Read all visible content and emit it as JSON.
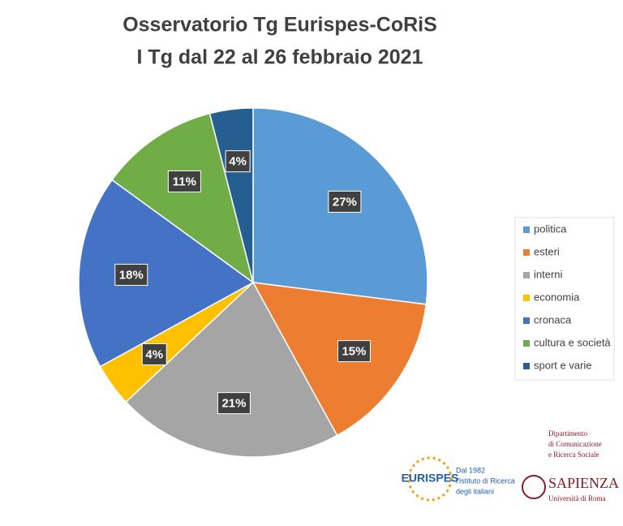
{
  "chart_data": {
    "type": "pie",
    "title": "Osservatorio Tg Eurispes-CoRiS",
    "subtitle": "I Tg dal 22 al 26 febbraio 2021",
    "categories": [
      "politica",
      "esteri",
      "interni",
      "economia",
      "cronaca",
      "cultura e società",
      "sport e varie"
    ],
    "values": [
      27,
      15,
      21,
      4,
      18,
      11,
      4
    ],
    "value_labels": [
      "27%",
      "15%",
      "21%",
      "4%",
      "18%",
      "11%",
      "4%"
    ],
    "colors": [
      "#5b9bd5",
      "#ed7d31",
      "#a5a5a5",
      "#ffc000",
      "#4472c4",
      "#70ad47",
      "#255e91"
    ],
    "legend": "right"
  },
  "footer": {
    "eurispes": "EURISPES",
    "eurispes_note": [
      "Dal 1982",
      "l'Istituto di Ricerca",
      "degli italiani"
    ],
    "department": [
      "Dipartimento",
      "di Comunicazione",
      "e Ricerca Sociale"
    ],
    "sapienza": "Sapienza",
    "sapienza_note": "Università di Roma"
  }
}
